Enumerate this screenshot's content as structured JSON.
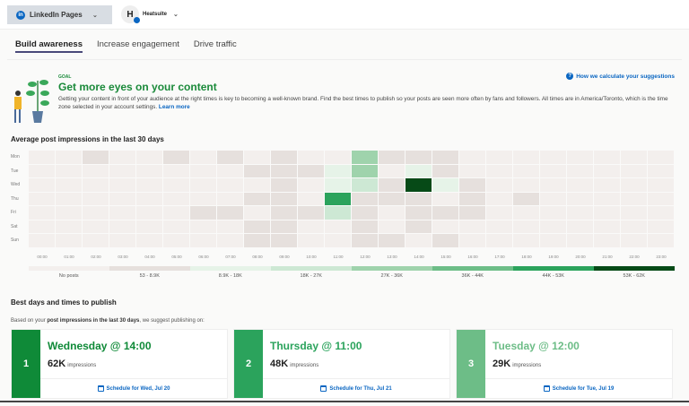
{
  "header": {
    "page_selector": "LinkedIn Pages",
    "org_initial": "H",
    "org_name": "Heatsuite"
  },
  "tabs": [
    {
      "label": "Build awareness",
      "active": true
    },
    {
      "label": "Increase engagement"
    },
    {
      "label": "Drive traffic"
    }
  ],
  "goal": {
    "label": "GOAL",
    "title": "Get more eyes on your content",
    "description": "Getting your content in front of your audience at the right times is key to becoming a well-known brand. Find the best times to publish so your posts are seen more often by fans and followers. All times are in America/Toronto, which is the time zone selected in your account settings.",
    "learn_more": "Learn more",
    "how_link": "How we calculate your suggestions"
  },
  "heatmap": {
    "title": "Average post impressions in the last 30 days",
    "days": [
      "Mon",
      "Tue",
      "Wed",
      "Thu",
      "Fri",
      "Sat",
      "Sun"
    ],
    "hours": [
      "00:00",
      "01:00",
      "02:00",
      "03:00",
      "04:00",
      "05:00",
      "06:00",
      "07:00",
      "08:00",
      "09:00",
      "10:00",
      "11:00",
      "12:00",
      "13:00",
      "14:00",
      "15:00",
      "16:00",
      "17:00",
      "18:00",
      "19:00",
      "20:00",
      "21:00",
      "22:00",
      "23:00"
    ],
    "legend": [
      {
        "label": "No posts",
        "color": "#f3efed"
      },
      {
        "label": "53 - 8.9K",
        "color": "#e6e0dd"
      },
      {
        "label": "8.9K - 18K",
        "color": "#e6f3e8"
      },
      {
        "label": "18K - 27K",
        "color": "#cde8d4"
      },
      {
        "label": "27K - 36K",
        "color": "#9fd3ac"
      },
      {
        "label": "36K - 44K",
        "color": "#6dbd87"
      },
      {
        "label": "44K - 53K",
        "color": "#2ba35c"
      },
      {
        "label": "53K - 62K",
        "color": "#064a17"
      }
    ],
    "levels": [
      [
        0,
        0,
        1,
        0,
        0,
        1,
        0,
        1,
        0,
        1,
        0,
        0,
        4,
        1,
        1,
        1,
        0,
        0,
        0,
        0,
        0,
        0,
        0,
        0
      ],
      [
        0,
        0,
        0,
        0,
        0,
        0,
        0,
        0,
        1,
        1,
        1,
        2,
        4,
        0,
        2,
        1,
        0,
        0,
        0,
        0,
        0,
        0,
        0,
        0
      ],
      [
        0,
        0,
        0,
        0,
        0,
        0,
        0,
        0,
        0,
        1,
        0,
        2,
        3,
        1,
        7,
        2,
        1,
        0,
        0,
        0,
        0,
        0,
        0,
        0
      ],
      [
        0,
        0,
        0,
        0,
        0,
        0,
        0,
        0,
        1,
        1,
        0,
        6,
        1,
        1,
        1,
        0,
        1,
        0,
        1,
        0,
        0,
        0,
        0,
        0
      ],
      [
        0,
        0,
        0,
        0,
        0,
        0,
        1,
        1,
        0,
        1,
        1,
        3,
        1,
        0,
        1,
        1,
        1,
        0,
        0,
        0,
        0,
        0,
        0,
        0
      ],
      [
        0,
        0,
        0,
        0,
        0,
        0,
        0,
        0,
        1,
        1,
        0,
        0,
        1,
        0,
        1,
        0,
        0,
        0,
        0,
        0,
        0,
        0,
        0,
        0
      ],
      [
        0,
        0,
        0,
        0,
        0,
        0,
        0,
        0,
        1,
        1,
        0,
        0,
        1,
        1,
        0,
        1,
        0,
        0,
        0,
        0,
        0,
        0,
        0,
        0
      ]
    ]
  },
  "best": {
    "title": "Best days and times to publish",
    "sub_prefix": "Based on your ",
    "sub_bold": "post impressions in the last 30 days",
    "sub_suffix": ", we suggest publishing on:",
    "impressions_label": "impressions",
    "cards": [
      {
        "rank": "1",
        "title": "Wednesday @ 14:00",
        "impressions": "62K",
        "schedule": "Schedule for Wed, Jul 20",
        "color": "#0f8a38"
      },
      {
        "rank": "2",
        "title": "Thursday @ 11:00",
        "impressions": "48K",
        "schedule": "Schedule for Thu, Jul 21",
        "color": "#2ba35c"
      },
      {
        "rank": "3",
        "title": "Tuesday @ 12:00",
        "impressions": "29K",
        "schedule": "Schedule for Tue, Jul 19",
        "color": "#6dbd87"
      }
    ]
  }
}
